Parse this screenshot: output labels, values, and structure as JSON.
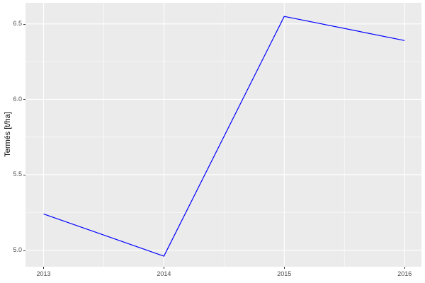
{
  "chart_data": {
    "type": "line",
    "ylabel": "Termés [t/ha]",
    "x": [
      2013,
      2014,
      2015,
      2016
    ],
    "values": [
      5.24,
      4.96,
      6.55,
      6.39
    ],
    "xticks": [
      2013,
      2014,
      2015,
      2016
    ],
    "xtick_labels": [
      "2013",
      "2014",
      "2015",
      "2016"
    ],
    "yticks": [
      5.0,
      5.5,
      6.0,
      6.5
    ],
    "ytick_labels": [
      "5.0",
      "5.5",
      "6.0",
      "6.5"
    ],
    "xticks_minor": [
      2013.5,
      2014.5,
      2015.5
    ],
    "yticks_minor": [
      5.25,
      5.75,
      6.25
    ],
    "xlim": [
      2012.85,
      2016.14
    ],
    "ylim": [
      4.89,
      6.64
    ],
    "grid": true,
    "legend": false,
    "colors": {
      "line": "#0000FF",
      "panel_background": "#EBEBEB",
      "grid_major": "#FFFFFF",
      "grid_minor": "#FFFFFF",
      "axis_text": "#4D4D4D",
      "axis_title": "#000000",
      "tick_mark": "#333333"
    }
  }
}
